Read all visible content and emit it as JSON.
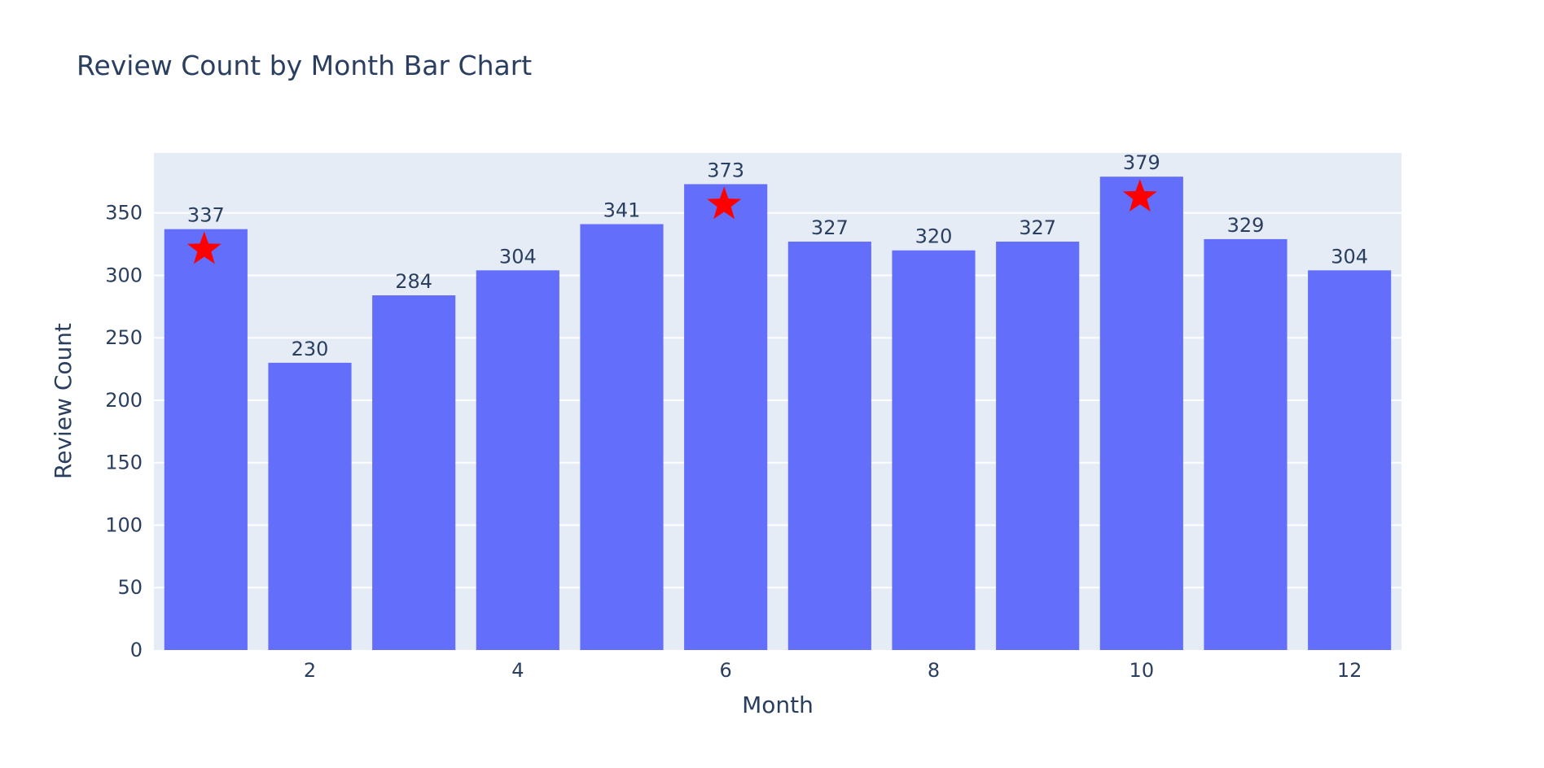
{
  "chart_data": {
    "type": "bar",
    "title": "Review Count by Month Bar Chart",
    "xlabel": "Month",
    "ylabel": "Review Count",
    "x": [
      1,
      2,
      3,
      4,
      5,
      6,
      7,
      8,
      9,
      10,
      11,
      12
    ],
    "values": [
      337,
      230,
      284,
      304,
      341,
      373,
      327,
      320,
      327,
      379,
      329,
      304
    ],
    "x_tick_labels": [
      2,
      4,
      6,
      8,
      10,
      12
    ],
    "y_tick_labels": [
      0,
      50,
      100,
      150,
      200,
      250,
      300,
      350
    ],
    "ylim": [
      0,
      398
    ],
    "highlighted_months": [
      1,
      6,
      10
    ],
    "bar_color": "#636efa",
    "highlight_marker_color": "#ff0000",
    "plot_background": "#e5ecf6",
    "grid": true,
    "legend": false
  }
}
